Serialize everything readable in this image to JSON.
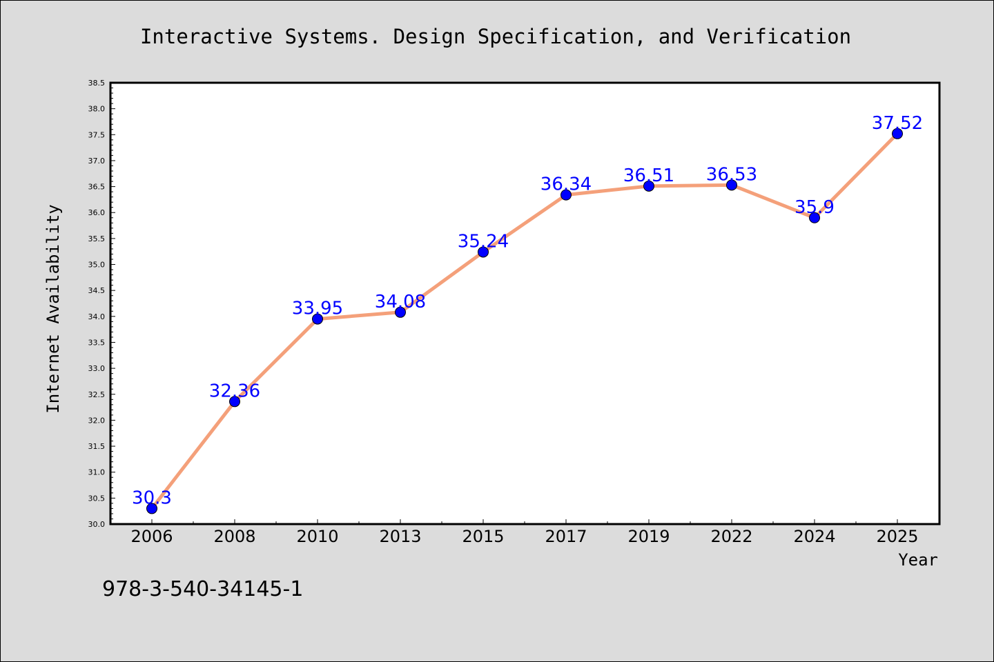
{
  "chart_data": {
    "type": "line",
    "title": "Interactive Systems. Design Specification, and Verification",
    "xlabel": "Year",
    "ylabel": "Internet Availability",
    "categories": [
      "2006",
      "2008",
      "2010",
      "2013",
      "2015",
      "2017",
      "2019",
      "2022",
      "2024",
      "2025"
    ],
    "series": [
      {
        "values": [
          30.3,
          32.36,
          33.95,
          34.08,
          35.24,
          36.34,
          36.51,
          36.53,
          35.9,
          37.52
        ],
        "data_labels": [
          "30.3",
          "32.36",
          "33.95",
          "34.08",
          "35.24",
          "36.34",
          "36.51",
          "36.53",
          "35.9",
          "37.52"
        ]
      }
    ],
    "ylim": [
      30.0,
      38.5
    ],
    "yticks": [
      "30.0",
      "30.5",
      "31.0",
      "31.5",
      "32.0",
      "32.5",
      "33.0",
      "33.5",
      "34.0",
      "34.5",
      "35.0",
      "35.5",
      "36.0",
      "36.5",
      "37.0",
      "37.5",
      "38.0",
      "38.5"
    ],
    "grid": false,
    "legend": "none",
    "colors": {
      "line": "#f4a07a",
      "marker": "#0000ff",
      "data_label": "#0000ff",
      "background": "#dcdcdc",
      "plot_background": "#ffffff"
    }
  },
  "footnote": "978-3-540-34145-1"
}
